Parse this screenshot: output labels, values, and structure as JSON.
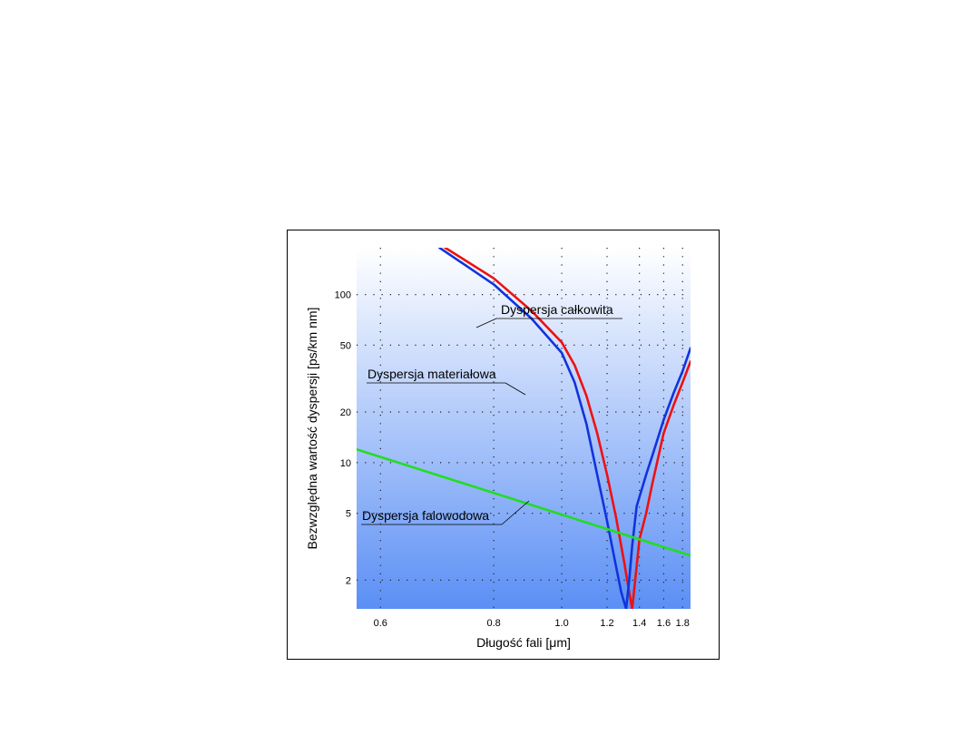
{
  "chart_data": {
    "type": "line",
    "title": "",
    "xlabel": "Długość fali [μm]",
    "ylabel": "Bezwzględna wartość dyspersji [ps/km nm]",
    "x_scale": "reciprocal",
    "y_scale": "log",
    "xlim": [
      0.57,
      1.9
    ],
    "ylim": [
      1.35,
      190
    ],
    "x_ticks": [
      {
        "value": 0.6,
        "label": "0.6"
      },
      {
        "value": 0.8,
        "label": "0.8"
      },
      {
        "value": 1.0,
        "label": "1.0"
      },
      {
        "value": 1.2,
        "label": "1.2"
      },
      {
        "value": 1.4,
        "label": "1.4"
      },
      {
        "value": 1.6,
        "label": "1.6"
      },
      {
        "value": 1.8,
        "label": "1.8"
      }
    ],
    "y_ticks": [
      {
        "value": 2,
        "label": "2"
      },
      {
        "value": 5,
        "label": "5"
      },
      {
        "value": 10,
        "label": "10"
      },
      {
        "value": 20,
        "label": "20"
      },
      {
        "value": 50,
        "label": "50"
      },
      {
        "value": 100,
        "label": "100"
      }
    ],
    "grid": true,
    "background_gradient": [
      "#ffffff",
      "#5b8ff5"
    ],
    "series": [
      {
        "name": "Dyspersja całkowita",
        "color": "#ee1111",
        "x": [
          0.7,
          0.8,
          0.9,
          1.0,
          1.05,
          1.1,
          1.15,
          1.2,
          1.25,
          1.3,
          1.33,
          1.35,
          1.37,
          1.4,
          1.45,
          1.5,
          1.6,
          1.7,
          1.8,
          1.9
        ],
        "y": [
          190,
          125,
          80,
          52,
          38,
          25,
          15,
          8.5,
          4.7,
          2.5,
          1.7,
          1.35,
          2.0,
          3.5,
          5.0,
          7.5,
          15,
          22,
          30,
          40
        ]
      },
      {
        "name": "Dyspersja materiałowa",
        "color": "#1133dd",
        "x": [
          0.69,
          0.8,
          0.9,
          1.0,
          1.05,
          1.1,
          1.15,
          1.2,
          1.25,
          1.28,
          1.31,
          1.33,
          1.35,
          1.38,
          1.45,
          1.5,
          1.6,
          1.7,
          1.8,
          1.9
        ],
        "y": [
          190,
          115,
          72,
          45,
          30,
          17,
          8.5,
          4.5,
          2.4,
          1.7,
          1.35,
          2.0,
          3.2,
          5.5,
          8.5,
          11,
          18,
          26,
          35,
          48
        ]
      },
      {
        "name": "Dyspersja falowodowa",
        "color": "#22dd22",
        "x": [
          0.57,
          1.9
        ],
        "y": [
          12,
          2.8
        ]
      }
    ],
    "annotations": [
      {
        "text": "Dyspersja całkowita",
        "target_series": 0
      },
      {
        "text": "Dyspersja materiałowa",
        "target_series": 1
      },
      {
        "text": "Dyspersja falowodowa",
        "target_series": 2
      }
    ]
  }
}
